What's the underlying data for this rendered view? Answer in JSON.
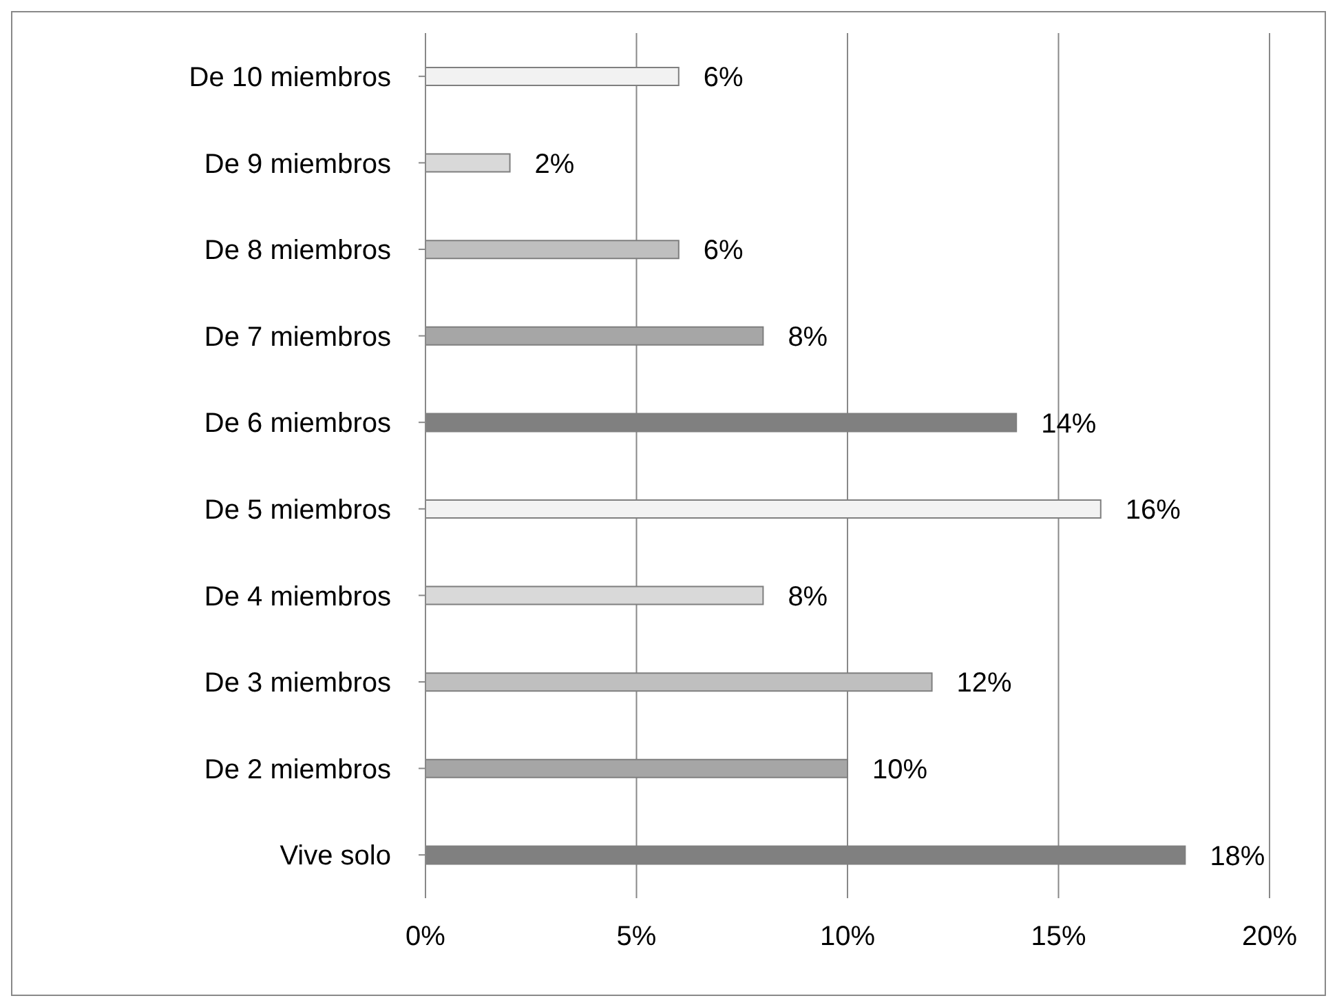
{
  "chart_data": {
    "type": "bar",
    "orientation": "horizontal",
    "categories": [
      "De 10 miembros",
      "De 9 miembros",
      "De 8 miembros",
      "De 7 miembros",
      "De 6 miembros",
      "De 5 miembros",
      "De 4 miembros",
      "De 3 miembros",
      "De 2 miembros",
      "Vive solo"
    ],
    "values": [
      6,
      2,
      6,
      8,
      14,
      16,
      8,
      12,
      10,
      18
    ],
    "colors": [
      "#f2f2f2",
      "#d9d9d9",
      "#bfbfbf",
      "#a6a6a6",
      "#808080",
      "#f2f2f2",
      "#d9d9d9",
      "#bfbfbf",
      "#a6a6a6",
      "#808080"
    ],
    "value_labels": [
      "6%",
      "2%",
      "6%",
      "8%",
      "14%",
      "16%",
      "8%",
      "12%",
      "10%",
      "18%"
    ],
    "xlim": [
      0,
      20
    ],
    "xticks": [
      {
        "value": 0,
        "label": "0%"
      },
      {
        "value": 5,
        "label": "5%"
      },
      {
        "value": 10,
        "label": "10%"
      },
      {
        "value": 15,
        "label": "15%"
      },
      {
        "value": 20,
        "label": "20%"
      }
    ],
    "grid": "x",
    "legend": false
  }
}
